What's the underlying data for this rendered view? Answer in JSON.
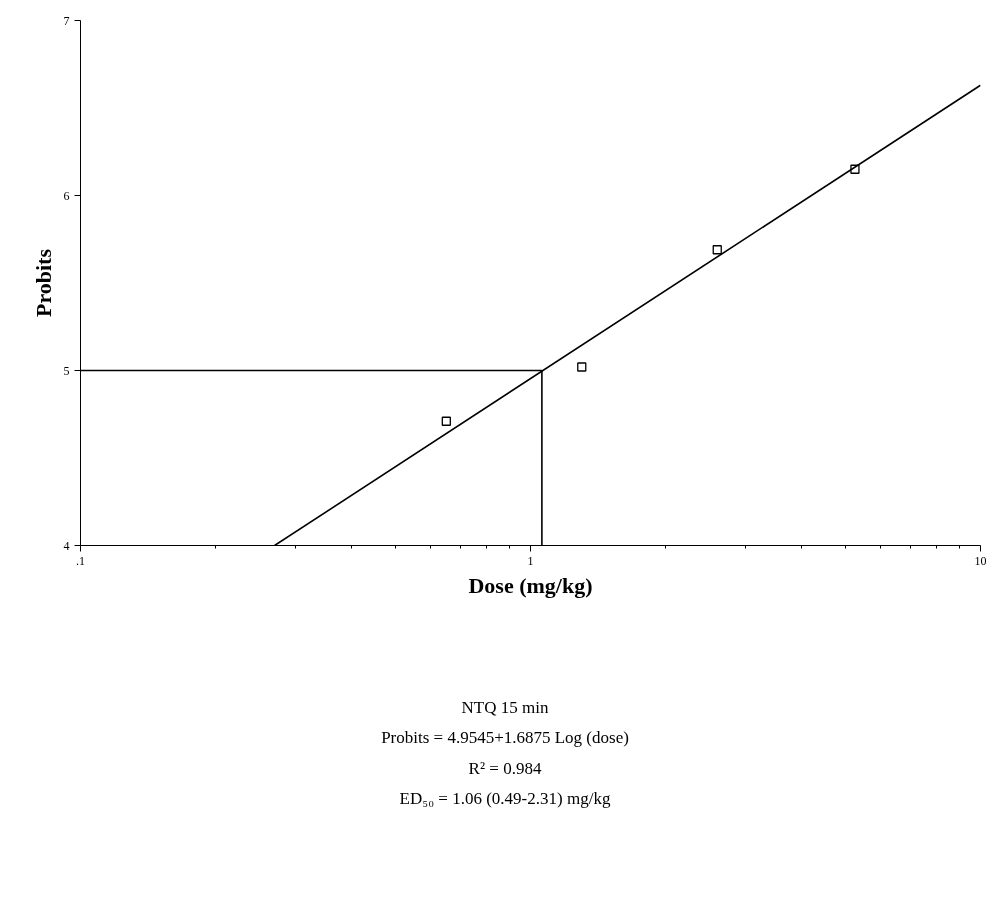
{
  "chart_data": {
    "type": "scatter",
    "xlabel": "Dose (mg/kg)",
    "ylabel": "Probits",
    "log": "x",
    "xlim": [
      0.1,
      10
    ],
    "ylim": [
      4,
      7
    ],
    "xticks": [
      {
        "value": 0.1,
        "label": ".1"
      },
      1,
      10
    ],
    "yticks": [
      4,
      5,
      6,
      7
    ],
    "grid": false,
    "series": [
      {
        "marker": "square",
        "color": "#000000",
        "x": [
          0.65,
          1.3,
          2.6,
          5.26
        ],
        "values": [
          4.71,
          5.02,
          5.69,
          6.15
        ]
      },
      {
        "type": "line",
        "marker": "none",
        "color": "#000000",
        "x": [
          0.27,
          10
        ],
        "values": [
          4.0,
          6.63
        ]
      },
      {
        "type": "line",
        "marker": "none",
        "color": "#000000",
        "x": [
          0.1,
          1.06
        ],
        "values": [
          5.0,
          5.0
        ]
      },
      {
        "type": "line",
        "marker": "none",
        "color": "#000000",
        "x": [
          1.06,
          1.06
        ],
        "values": [
          4.0,
          5.0
        ]
      }
    ],
    "annotations": [
      "NTQ 15 min",
      "Probits = 4.9545+1.6875 Log (dose)",
      "R² = 0.984",
      "ED₅₀ = 1.06 (0.49-2.31) mg/kg"
    ]
  }
}
